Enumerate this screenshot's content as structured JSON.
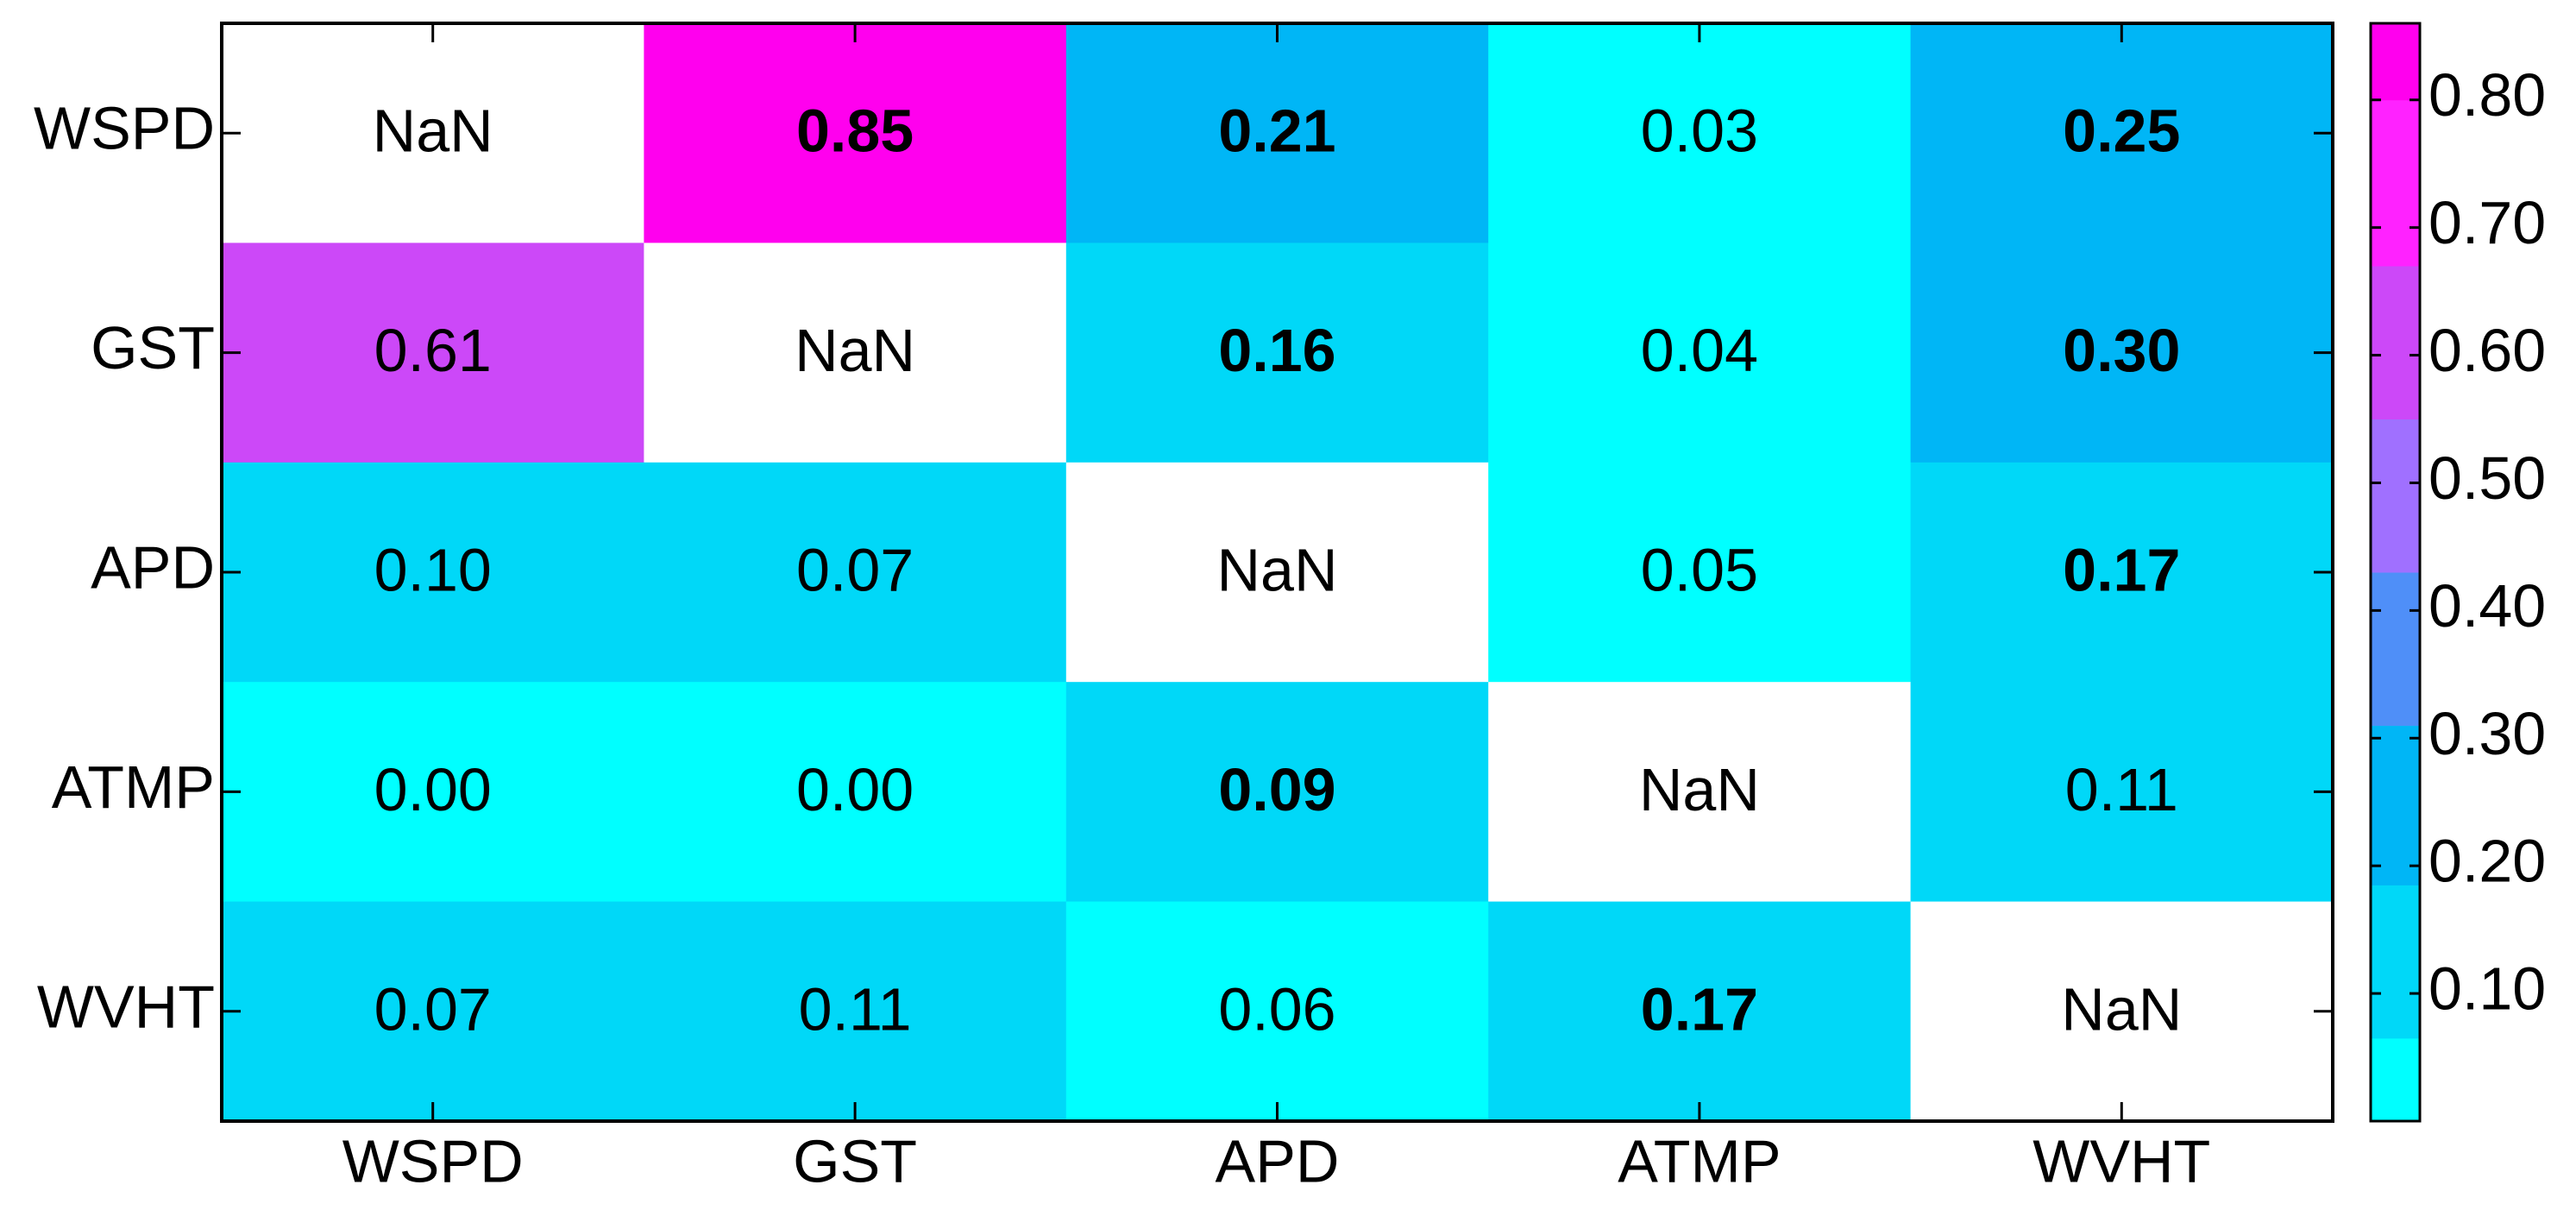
{
  "chart_data": {
    "type": "heatmap",
    "x_categories": [
      "WSPD",
      "GST",
      "APD",
      "ATMP",
      "WVHT"
    ],
    "y_categories": [
      "WSPD",
      "GST",
      "APD",
      "ATMP",
      "WVHT"
    ],
    "values": [
      [
        null,
        0.85,
        0.21,
        0.03,
        0.25
      ],
      [
        0.61,
        null,
        0.16,
        0.04,
        0.3
      ],
      [
        0.1,
        0.07,
        null,
        0.05,
        0.17
      ],
      [
        0.0,
        0.0,
        0.09,
        null,
        0.11
      ],
      [
        0.07,
        0.11,
        0.06,
        0.17,
        null
      ]
    ],
    "value_labels": [
      [
        "NaN",
        "0.85",
        "0.21",
        "0.03",
        "0.25"
      ],
      [
        "0.61",
        "NaN",
        "0.16",
        "0.04",
        "0.30"
      ],
      [
        "0.10",
        "0.07",
        "NaN",
        "0.05",
        "0.17"
      ],
      [
        "0.00",
        "0.00",
        "0.09",
        "NaN",
        "0.11"
      ],
      [
        "0.07",
        "0.11",
        "0.06",
        "0.17",
        "NaN"
      ]
    ],
    "bold": [
      [
        false,
        true,
        true,
        false,
        true
      ],
      [
        false,
        false,
        true,
        false,
        true
      ],
      [
        false,
        false,
        false,
        false,
        true
      ],
      [
        false,
        false,
        true,
        false,
        false
      ],
      [
        false,
        false,
        false,
        true,
        false
      ]
    ],
    "missing_color": "#ffffff",
    "colorbar": {
      "clim": [
        0,
        0.86
      ],
      "bounds": [
        0,
        0.065,
        0.185,
        0.31,
        0.43,
        0.55,
        0.67,
        0.8,
        0.86
      ],
      "colors": [
        "#00ffff",
        "#00d8f8",
        "#00b6f6",
        "#4f8ff8",
        "#a070ff",
        "#cc48f8",
        "#ff22ff",
        "#ff00ee"
      ],
      "ticks": [
        {
          "value": 0.1,
          "label": "0.10"
        },
        {
          "value": 0.2,
          "label": "0.20"
        },
        {
          "value": 0.3,
          "label": "0.30"
        },
        {
          "value": 0.4,
          "label": "0.40"
        },
        {
          "value": 0.5,
          "label": "0.50"
        },
        {
          "value": 0.6,
          "label": "0.60"
        },
        {
          "value": 0.7,
          "label": "0.70"
        },
        {
          "value": 0.8,
          "label": "0.80"
        }
      ]
    }
  }
}
